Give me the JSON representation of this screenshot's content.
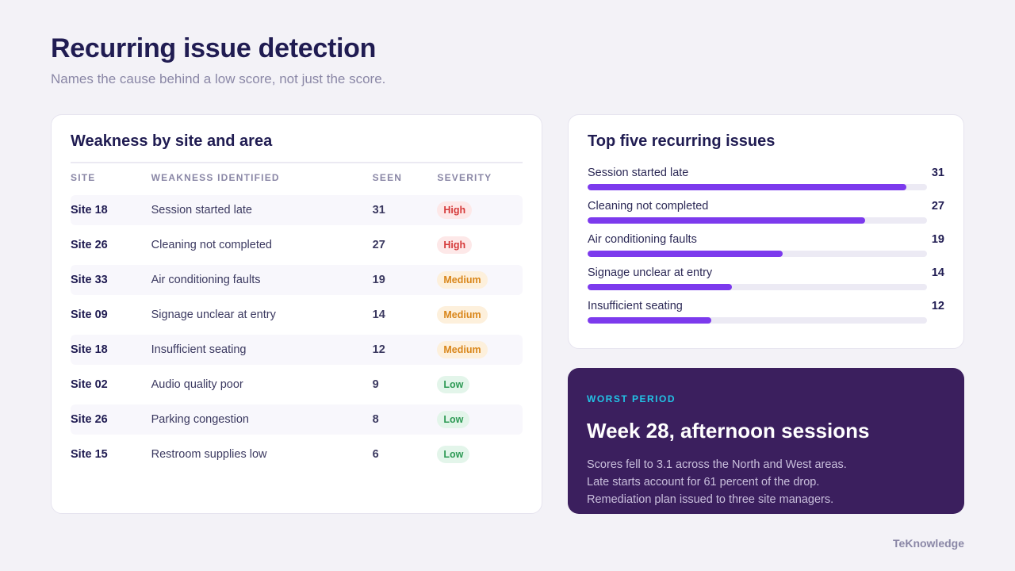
{
  "header": {
    "title": "Recurring issue detection",
    "subtitle": "Names the cause behind a low score, not just the score."
  },
  "weakness_table": {
    "title": "Weakness by site and area",
    "columns": [
      "SITE",
      "WEAKNESS IDENTIFIED",
      "SEEN",
      "SEVERITY"
    ],
    "rows": [
      {
        "site": "Site 18",
        "weakness": "Session started late",
        "seen": "31",
        "severity": "High"
      },
      {
        "site": "Site 26",
        "weakness": "Cleaning not completed",
        "seen": "27",
        "severity": "High"
      },
      {
        "site": "Site 33",
        "weakness": "Air conditioning faults",
        "seen": "19",
        "severity": "Medium"
      },
      {
        "site": "Site 09",
        "weakness": "Signage unclear at entry",
        "seen": "14",
        "severity": "Medium"
      },
      {
        "site": "Site 18",
        "weakness": "Insufficient seating",
        "seen": "12",
        "severity": "Medium"
      },
      {
        "site": "Site 02",
        "weakness": "Audio quality poor",
        "seen": "9",
        "severity": "Low"
      },
      {
        "site": "Site 26",
        "weakness": "Parking congestion",
        "seen": "8",
        "severity": "Low"
      },
      {
        "site": "Site 15",
        "weakness": "Restroom supplies low",
        "seen": "6",
        "severity": "Low"
      }
    ]
  },
  "top_issues": {
    "title": "Top five recurring issues",
    "scale_max": 33,
    "bar_color": "#7c3aed",
    "items": [
      {
        "label": "Session started late",
        "count": 31
      },
      {
        "label": "Cleaning not completed",
        "count": 27
      },
      {
        "label": "Air conditioning faults",
        "count": 19
      },
      {
        "label": "Signage unclear at entry",
        "count": 14
      },
      {
        "label": "Insufficient seating",
        "count": 12
      }
    ]
  },
  "worst_period": {
    "eyebrow": "WORST PERIOD",
    "title": "Week 28, afternoon sessions",
    "lines": [
      "Scores fell to 3.1 across the North and West areas.",
      "Late starts account for 61 percent of the drop.",
      "Remediation plan issued to three site managers."
    ]
  },
  "brand": "TeKnowledge"
}
